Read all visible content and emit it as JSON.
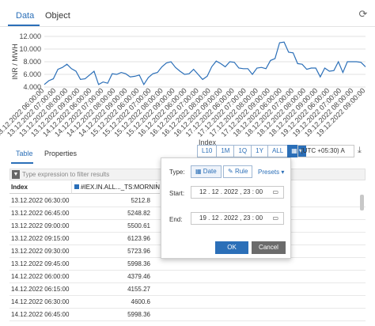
{
  "tabs": {
    "data": "Data",
    "object": "Object"
  },
  "chart_data": {
    "type": "line",
    "ylabel": "INR / MWH",
    "xlabel": "Index",
    "ylim": [
      4000,
      12000
    ],
    "yticks": [
      "12.000",
      "10.000",
      "8.000",
      "6.000",
      "4.000"
    ],
    "x_tick_labels": [
      "13.12.2022 06:00:00",
      "13.12.2022 07:00:00",
      "13.12.2022 08:00:00",
      "13.12.2022 09:00:00",
      "14.12.2022 06:00:00",
      "14.12.2022 07:00:00",
      "14.12.2022 08:00:00",
      "14.12.2022 09:00:00",
      "15.12.2022 06:00:00",
      "15.12.2022 07:00:00",
      "15.12.2022 08:00:00",
      "15.12.2022 09:00:00",
      "16.12.2022 06:00:00",
      "16.12.2022 07:00:00",
      "16.12.2022 08:00:00",
      "16.12.2022 09:00:00",
      "17.12.2022 06:00:00",
      "17.12.2022 07:00:00",
      "17.12.2022 08:00:00",
      "17.12.2022 09:00:00",
      "18.12.2022 06:00:00",
      "18.12.2022 07:00:00",
      "18.12.2022 08:00:00",
      "18.12.2022 09:00:00",
      "19.12.2022 06:00:00",
      "19.12.2022 07:00:00",
      "19.12.2022 08:00:00",
      "19.12.2022 09:00:00"
    ],
    "series": [
      {
        "color": "#2b6fb8",
        "values": [
          4400,
          5000,
          5300,
          6800,
          7100,
          7600,
          6900,
          6500,
          5200,
          5300,
          5900,
          6500,
          4400,
          4800,
          4600,
          6100,
          6000,
          6300,
          6100,
          5600,
          5700,
          5900,
          4400,
          5500,
          6100,
          6300,
          7200,
          7800,
          8000,
          7100,
          6500,
          6000,
          6100,
          6800,
          6000,
          5200,
          5700,
          7200,
          8100,
          7700,
          7200,
          8000,
          7900,
          7000,
          6900,
          6900,
          6000,
          7000,
          7100,
          6900,
          8200,
          8500,
          11000,
          11100,
          9500,
          9400,
          7700,
          7600,
          6800,
          7000,
          7000,
          5600,
          7000,
          6500,
          6600,
          8000,
          6300,
          8000,
          8000,
          8000,
          7900,
          7200
        ]
      }
    ]
  },
  "bottom_tabs": {
    "table": "Table",
    "properties": "Properties"
  },
  "periods": [
    "L10",
    "1M",
    "1Q",
    "1Y",
    "ALL"
  ],
  "timezone": "(UTC +05:30) A",
  "filter": {
    "placeholder": "Type expression to filter results"
  },
  "table": {
    "columns": [
      "Index",
      "#IEX.IN.ALL..._TS:MORNING"
    ],
    "rows": [
      [
        "13.12.2022 06:30:00",
        "5212.8"
      ],
      [
        "13.12.2022 06:45:00",
        "5248.82"
      ],
      [
        "13.12.2022 09:00:00",
        "5500.61"
      ],
      [
        "13.12.2022 09:15:00",
        "6123.96"
      ],
      [
        "13.12.2022 09:30:00",
        "5723.96"
      ],
      [
        "13.12.2022 09:45:00",
        "5998.36"
      ],
      [
        "14.12.2022 06:00:00",
        "4379.46"
      ],
      [
        "14.12.2022 06:15:00",
        "4155.27"
      ],
      [
        "14.12.2022 06:30:00",
        "4600.6"
      ],
      [
        "14.12.2022 06:45:00",
        "5998.36"
      ]
    ]
  },
  "popup": {
    "type_label": "Type:",
    "date_btn": "Date",
    "rule_btn": "Rule",
    "presets": "Presets",
    "start_label": "Start:",
    "start_value": "12 . 12 . 2022 ,  23 : 00",
    "end_label": "End:",
    "end_value": "19 . 12 . 2022 ,  23 : 00",
    "ok": "OK",
    "cancel": "Cancel"
  }
}
